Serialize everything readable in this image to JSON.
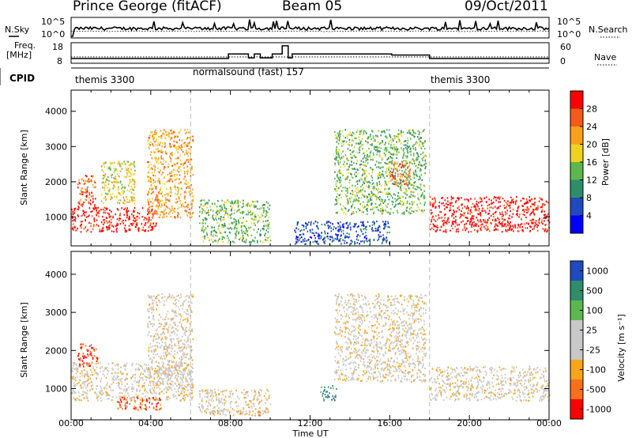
{
  "header": {
    "station": "Prince George (fitACF)",
    "beam": "Beam 05",
    "date": "09/Oct/2011"
  },
  "summary": {
    "nsky_label": "N.Sky",
    "nsearch_label": "N.Search",
    "count_ticks": [
      "10^5",
      "10^0"
    ],
    "freq_label_1": "Freq.",
    "freq_label_2": "[MHz]",
    "freq_ticks": [
      "18",
      "8"
    ],
    "nave_label": "Nave",
    "nave_ticks": [
      "60",
      "0"
    ],
    "cpid_label": "CPID",
    "cpid_segments": [
      {
        "label": "themis 3300",
        "start_hour": 0,
        "end_hour": 6
      },
      {
        "label": "normalsound (fast) 157",
        "start_hour": 6,
        "end_hour": 18
      },
      {
        "label": "themis 3300",
        "start_hour": 18,
        "end_hour": 24
      }
    ],
    "freq_steps": [
      {
        "start": 0,
        "end": 6,
        "mhz": 10.3
      },
      {
        "start": 6,
        "end": 7.9,
        "mhz": 10.3
      },
      {
        "start": 7.9,
        "end": 8.1,
        "mhz": 12.5
      },
      {
        "start": 8.1,
        "end": 8.9,
        "mhz": 12.5
      },
      {
        "start": 8.9,
        "end": 9.2,
        "mhz": 10.6
      },
      {
        "start": 9.2,
        "end": 9.5,
        "mhz": 12.5
      },
      {
        "start": 9.5,
        "end": 10.1,
        "mhz": 10.6
      },
      {
        "start": 10.1,
        "end": 10.6,
        "mhz": 12.5
      },
      {
        "start": 10.6,
        "end": 10.9,
        "mhz": 16.5
      },
      {
        "start": 10.9,
        "end": 11.1,
        "mhz": 10.6
      },
      {
        "start": 11.1,
        "end": 16.1,
        "mhz": 12.5
      },
      {
        "start": 16.1,
        "end": 18,
        "mhz": 12.0
      },
      {
        "start": 18,
        "end": 24,
        "mhz": 10.3
      }
    ]
  },
  "chart_data": [
    {
      "type": "heatmap",
      "quantity": "power",
      "ylabel": "Slant Range [km]",
      "ylim": [
        180,
        4600
      ],
      "y_ticks": [
        1000,
        2000,
        3000,
        4000
      ],
      "xlim": [
        0,
        24
      ],
      "colorbar_label": "Power [dB]",
      "colorbar_ticks": [
        "28",
        "24",
        "20",
        "16",
        "12",
        "8",
        "4"
      ],
      "colors": [
        "#0000ff",
        "#204bbd",
        "#2f8d6b",
        "#5cb84e",
        "#f0d21e",
        "#f7a01b",
        "#f45a1a",
        "#ff0000"
      ],
      "scatter_regions": [
        {
          "t0": 0.0,
          "t1": 4.3,
          "r0": 600,
          "r1": 1300,
          "level": 7
        },
        {
          "t0": 0.3,
          "t1": 1.2,
          "r0": 1300,
          "r1": 2200,
          "level": 6
        },
        {
          "t0": 1.5,
          "t1": 3.2,
          "r0": 1400,
          "r1": 2600,
          "level": 4
        },
        {
          "t0": 3.8,
          "t1": 6.1,
          "r0": 1000,
          "r1": 3500,
          "level": 5
        },
        {
          "t0": 6.4,
          "t1": 10.0,
          "r0": 300,
          "r1": 1500,
          "level": 3
        },
        {
          "t0": 11.2,
          "t1": 16.0,
          "r0": 250,
          "r1": 900,
          "level": 1
        },
        {
          "t0": 13.2,
          "t1": 17.8,
          "r0": 1100,
          "r1": 3500,
          "level": 3
        },
        {
          "t0": 16.0,
          "t1": 17.0,
          "r0": 1900,
          "r1": 2600,
          "level": 6
        },
        {
          "t0": 18.0,
          "t1": 24.0,
          "r0": 600,
          "r1": 1600,
          "level": 7
        }
      ]
    },
    {
      "type": "heatmap",
      "quantity": "velocity",
      "ylabel": "Slant Range [km]",
      "ylim": [
        180,
        4600
      ],
      "y_ticks": [
        1000,
        2000,
        3000,
        4000
      ],
      "xlim": [
        0,
        24
      ],
      "colorbar_label": "Velocity [m s⁻¹]",
      "colorbar_ticks": [
        "1000",
        "500",
        "100",
        "25",
        "-25",
        "-100",
        "-500",
        "-1000"
      ],
      "colors": [
        "#ff0000",
        "#f8701c",
        "#f8a51c",
        "#c8c8c8",
        "#c8c8c8",
        "#5cb84e",
        "#2f8d6b",
        "#204bbd"
      ],
      "scatter_regions": [
        {
          "t0": 0.0,
          "t1": 6.1,
          "r0": 700,
          "r1": 1700,
          "level": 3
        },
        {
          "t0": 3.8,
          "t1": 6.1,
          "r0": 1000,
          "r1": 3500,
          "level": 3
        },
        {
          "t0": 0.3,
          "t1": 1.3,
          "r0": 1600,
          "r1": 2200,
          "level": 0
        },
        {
          "t0": 2.2,
          "t1": 4.5,
          "r0": 450,
          "r1": 800,
          "level": 1
        },
        {
          "t0": 6.4,
          "t1": 10.0,
          "r0": 350,
          "r1": 1000,
          "level": 3
        },
        {
          "t0": 7.0,
          "t1": 9.5,
          "r0": 300,
          "r1": 450,
          "level": 2
        },
        {
          "t0": 12.5,
          "t1": 13.3,
          "r0": 700,
          "r1": 1100,
          "level": 6
        },
        {
          "t0": 13.2,
          "t1": 17.8,
          "r0": 1200,
          "r1": 3500,
          "level": 3
        },
        {
          "t0": 18.0,
          "t1": 24.0,
          "r0": 700,
          "r1": 1600,
          "level": 3
        }
      ]
    }
  ],
  "x_axis": {
    "label": "Time UT",
    "ticks": [
      "00:00",
      "04:00",
      "08:00",
      "12:00",
      "16:00",
      "20:00",
      "00:00"
    ]
  }
}
